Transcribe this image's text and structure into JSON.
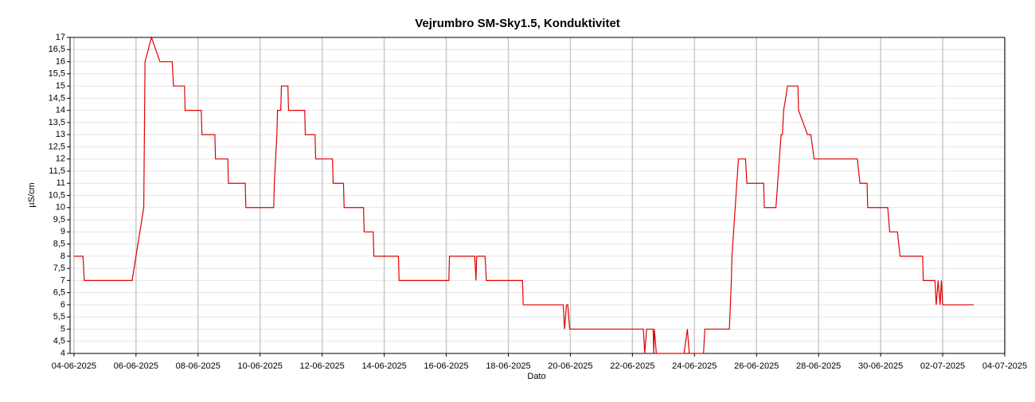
{
  "chart_data": {
    "type": "line",
    "title": "Vejrumbro SM-Sky1.5, Konduktivitet",
    "x_label": "Dato",
    "y_label": "µS/cm",
    "grid": true,
    "xlim": [
      "2025-06-03T21:00",
      "2025-07-04T00:00"
    ],
    "xticks": [
      {
        "value": "2025-06-04",
        "label": "04-06-2025"
      },
      {
        "value": "2025-06-06",
        "label": "06-06-2025"
      },
      {
        "value": "2025-06-08",
        "label": "08-06-2025"
      },
      {
        "value": "2025-06-10",
        "label": "10-06-2025"
      },
      {
        "value": "2025-06-12",
        "label": "12-06-2025"
      },
      {
        "value": "2025-06-14",
        "label": "14-06-2025"
      },
      {
        "value": "2025-06-16",
        "label": "16-06-2025"
      },
      {
        "value": "2025-06-18",
        "label": "18-06-2025"
      },
      {
        "value": "2025-06-20",
        "label": "20-06-2025"
      },
      {
        "value": "2025-06-22",
        "label": "22-06-2025"
      },
      {
        "value": "2025-06-24",
        "label": "24-06-2025"
      },
      {
        "value": "2025-06-26",
        "label": "26-06-2025"
      },
      {
        "value": "2025-06-28",
        "label": "28-06-2025"
      },
      {
        "value": "2025-06-30",
        "label": "30-06-2025"
      },
      {
        "value": "2025-07-02",
        "label": "02-07-2025"
      },
      {
        "value": "2025-07-04",
        "label": "04-07-2025"
      }
    ],
    "ylim": [
      4,
      17
    ],
    "yticks": [
      4,
      {
        "value": 4.5,
        "label": "4,5"
      },
      5,
      {
        "value": 5.5,
        "label": "5,5"
      },
      6,
      {
        "value": 6.5,
        "label": "6,5"
      },
      7,
      {
        "value": 7.5,
        "label": "7,5"
      },
      8,
      {
        "value": 8.5,
        "label": "8,5"
      },
      9,
      {
        "value": 9.5,
        "label": "9,5"
      },
      10,
      {
        "value": 10.5,
        "label": "10,5"
      },
      11,
      {
        "value": 11.5,
        "label": "11,5"
      },
      12,
      {
        "value": 12.5,
        "label": "12,5"
      },
      13,
      {
        "value": 13.5,
        "label": "13,5"
      },
      14,
      {
        "value": 14.5,
        "label": "14,5"
      },
      15,
      {
        "value": 15.5,
        "label": "15,5"
      },
      16,
      {
        "value": 16.5,
        "label": "16,5"
      },
      17
    ],
    "x": [
      "2025-06-04T00:00",
      "2025-06-04T07:00",
      "2025-06-04T08:00",
      "2025-06-05T21:00",
      "2025-06-06T06:00",
      "2025-06-06T07:00",
      "2025-06-06T12:00",
      "2025-06-06T18:30",
      "2025-06-07T04:00",
      "2025-06-07T05:00",
      "2025-06-07T13:30",
      "2025-06-07T14:00",
      "2025-06-08T02:30",
      "2025-06-08T03:00",
      "2025-06-08T13:00",
      "2025-06-08T13:30",
      "2025-06-08T23:00",
      "2025-06-08T23:30",
      "2025-06-09T12:30",
      "2025-06-09T13:00",
      "2025-06-10T10:30",
      "2025-06-10T11:00",
      "2025-06-10T12:00",
      "2025-06-10T13:00",
      "2025-06-10T13:30",
      "2025-06-10T16:00",
      "2025-06-10T16:30",
      "2025-06-10T21:30",
      "2025-06-10T22:00",
      "2025-06-11T10:30",
      "2025-06-11T11:00",
      "2025-06-11T18:30",
      "2025-06-11T19:00",
      "2025-06-12T08:00",
      "2025-06-12T08:30",
      "2025-06-12T16:30",
      "2025-06-12T17:00",
      "2025-06-13T08:00",
      "2025-06-13T08:30",
      "2025-06-13T15:30",
      "2025-06-13T16:00",
      "2025-06-14T11:00",
      "2025-06-14T11:30",
      "2025-06-16T02:00",
      "2025-06-16T02:30",
      "2025-06-16T22:00",
      "2025-06-16T23:00",
      "2025-06-16T23:30",
      "2025-06-17T06:00",
      "2025-06-17T07:00",
      "2025-06-18T11:00",
      "2025-06-18T11:30",
      "2025-06-19T18:30",
      "2025-06-19T19:30",
      "2025-06-19T21:00",
      "2025-06-19T22:00",
      "2025-06-19T23:30",
      "2025-06-22T08:30",
      "2025-06-22T09:30",
      "2025-06-22T11:00",
      "2025-06-22T16:00",
      "2025-06-22T16:30",
      "2025-06-22T17:00",
      "2025-06-22T18:30",
      "2025-06-23T16:00",
      "2025-06-23T18:30",
      "2025-06-23T20:00",
      "2025-06-24T07:00",
      "2025-06-24T08:00",
      "2025-06-25T03:00",
      "2025-06-25T04:30",
      "2025-06-25T05:00",
      "2025-06-25T10:00",
      "2025-06-25T15:30",
      "2025-06-25T16:30",
      "2025-06-26T05:30",
      "2025-06-26T06:00",
      "2025-06-26T15:00",
      "2025-06-26T19:00",
      "2025-06-26T20:00",
      "2025-06-26T21:00",
      "2025-06-27T00:00",
      "2025-06-27T08:00",
      "2025-06-27T08:30",
      "2025-06-27T15:30",
      "2025-06-27T18:00",
      "2025-06-27T20:30",
      "2025-06-29T06:00",
      "2025-06-29T08:00",
      "2025-06-29T13:30",
      "2025-06-29T14:00",
      "2025-06-30T05:30",
      "2025-06-30T07:00",
      "2025-06-30T13:00",
      "2025-06-30T15:00",
      "2025-07-01T08:30",
      "2025-07-01T09:00",
      "2025-07-01T18:00",
      "2025-07-01T19:00",
      "2025-07-01T20:30",
      "2025-07-01T22:00",
      "2025-07-01T23:00",
      "2025-07-02T00:00",
      "2025-07-03T00:00"
    ],
    "series": [
      {
        "name": "Konduktivitet",
        "color": "#e00000",
        "values": [
          8,
          8,
          7,
          7,
          10,
          16,
          17,
          16,
          16,
          15,
          15,
          14,
          14,
          13,
          13,
          12,
          12,
          11,
          11,
          10,
          10,
          11,
          12,
          13,
          14,
          14,
          15,
          15,
          14,
          14,
          13,
          13,
          12,
          12,
          11,
          11,
          10,
          10,
          9,
          9,
          8,
          8,
          7,
          7,
          8,
          8,
          7,
          8,
          8,
          7,
          7,
          6,
          6,
          5,
          6,
          6,
          5,
          5,
          4,
          5,
          5,
          4,
          5,
          4,
          4,
          5,
          4,
          4,
          5,
          5,
          7,
          8,
          12,
          12,
          11,
          11,
          10,
          10,
          13,
          13,
          14,
          15,
          15,
          14,
          13,
          13,
          12,
          12,
          11,
          11,
          10,
          10,
          9,
          9,
          8,
          8,
          7,
          7,
          6,
          7,
          6,
          7,
          6,
          6
        ]
      }
    ]
  }
}
